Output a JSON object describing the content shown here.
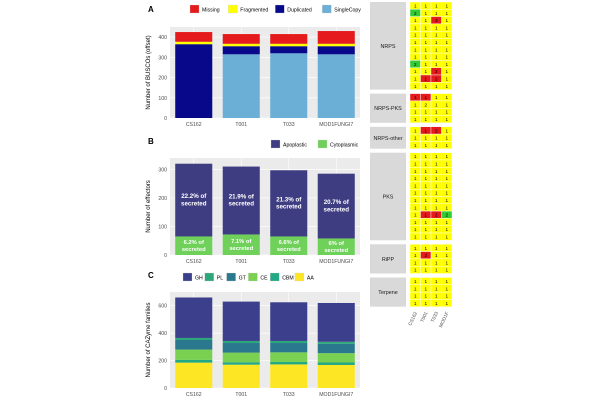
{
  "figure": {
    "panel_letters": [
      "A",
      "B",
      "C",
      "D"
    ]
  },
  "colors": {
    "panel_bg": "#ebebeb",
    "grid": "#ffffff",
    "axis_text": "#4d4d4d",
    "strip_bg": "#d9d9d9",
    "heat_yellow": "#ffff00",
    "heat_red": "#e41a1c",
    "heat_green": "#33cc33"
  },
  "chart_data": [
    {
      "id": "A",
      "type": "bar",
      "stacked": true,
      "ylabel": "Number of BUSCOs (offset)",
      "xlabel": "",
      "categories": [
        "CS162",
        "T001",
        "T033",
        "MOD1FUNGI7"
      ],
      "ylim": [
        0,
        450
      ],
      "yticks": [
        0,
        100,
        200,
        300,
        400
      ],
      "legend_position": "top-right",
      "series": [
        {
          "name": "SingleCopy",
          "color": "#6baed6",
          "values": [
            0,
            315,
            320,
            315
          ]
        },
        {
          "name": "Duplicated",
          "color": "#08088a",
          "values": [
            365,
            40,
            35,
            40
          ]
        },
        {
          "name": "Fragmented",
          "color": "#ffff00",
          "values": [
            12,
            12,
            12,
            12
          ]
        },
        {
          "name": "Missing",
          "color": "#e41a1c",
          "values": [
            48,
            48,
            48,
            63
          ]
        }
      ],
      "legend_order": [
        "Missing",
        "Fragmented",
        "Duplicated",
        "SingleCopy"
      ]
    },
    {
      "id": "B",
      "type": "bar",
      "stacked": true,
      "ylabel": "Number of effectors",
      "xlabel": "",
      "categories": [
        "CS162",
        "T001",
        "T033",
        "MOD1FUNGI7"
      ],
      "ylim": [
        0,
        340
      ],
      "yticks": [
        0,
        100,
        200,
        300
      ],
      "legend_position": "top-right",
      "series": [
        {
          "name": "Cytoplasmic",
          "color": "#6fd05a",
          "values": [
            65,
            72,
            65,
            58
          ]
        },
        {
          "name": "Apoplastic",
          "color": "#3f3d82",
          "values": [
            255,
            238,
            232,
            227
          ]
        }
      ],
      "legend_order": [
        "Apoplastic",
        "Cytoplasmic"
      ],
      "annotations": {
        "Apoplastic": [
          "22.2% of secreted",
          "21.9% of secreted",
          "21.3% of secreted",
          "20.7% of secreted"
        ],
        "Cytoplasmic": [
          "6.2% of secreted",
          "7.1% of secreted",
          "6.6% of secreted",
          "6% of secreted"
        ]
      }
    },
    {
      "id": "C",
      "type": "bar",
      "stacked": true,
      "ylabel": "Number of CAZyme families",
      "xlabel": "",
      "categories": [
        "CS162",
        "T001",
        "T033",
        "MOD1FUNGI7"
      ],
      "ylim": [
        0,
        700
      ],
      "yticks": [
        0,
        200,
        400,
        600
      ],
      "legend_position": "top-right",
      "series": [
        {
          "name": "AA",
          "color": "#fde725",
          "values": [
            185,
            170,
            172,
            168
          ]
        },
        {
          "name": "CBM",
          "color": "#22a884",
          "values": [
            20,
            18,
            18,
            18
          ]
        },
        {
          "name": "CE",
          "color": "#7ad151",
          "values": [
            75,
            70,
            70,
            68
          ]
        },
        {
          "name": "GT",
          "color": "#2a788e",
          "values": [
            70,
            70,
            68,
            68
          ]
        },
        {
          "name": "PL",
          "color": "#2ba77a",
          "values": [
            15,
            15,
            15,
            15
          ]
        },
        {
          "name": "GH",
          "color": "#3b3f8c",
          "values": [
            295,
            287,
            282,
            283
          ]
        }
      ],
      "legend_order": [
        "GH",
        "PL",
        "GT",
        "CE",
        "CBM",
        "AA"
      ]
    },
    {
      "id": "D",
      "type": "heatmap",
      "columns": [
        "CS162",
        "T001",
        "T033",
        "MOD1FUNGI7"
      ],
      "column_labels_display": [
        "CS162",
        "T001",
        "T033",
        "MOD1F"
      ],
      "groups": [
        {
          "name": "NRPS",
          "rows": [
            [
              "1",
              "1",
              "1",
              "1"
            ],
            [
              "2",
              "1",
              "1",
              "1"
            ],
            [
              "1",
              "1",
              "3",
              "1"
            ],
            [
              "1",
              "1",
              "1",
              "1"
            ],
            [
              "1",
              "1",
              "1",
              "1"
            ],
            [
              "1",
              "1",
              "1",
              "1"
            ],
            [
              "1",
              "1",
              "1",
              "1"
            ],
            [
              "1",
              "1",
              "1",
              "1"
            ],
            [
              "2",
              "1",
              "1",
              "1"
            ],
            [
              "1",
              "1",
              "2",
              "1"
            ],
            [
              "1",
              "1",
              "2",
              "1"
            ],
            [
              "1",
              "1",
              "1",
              "1"
            ]
          ]
        },
        {
          "name": "NRPS-PKS",
          "rows": [
            [
              "1",
              "1",
              "1",
              "1"
            ],
            [
              "1",
              "2",
              "1",
              "1"
            ],
            [
              "1",
              "1",
              "1",
              "1"
            ],
            [
              "1",
              "1",
              "1",
              "1"
            ]
          ]
        },
        {
          "name": "NRPS-other",
          "rows": [
            [
              "1",
              "1",
              "2",
              "1"
            ],
            [
              "1",
              "1",
              "1",
              "1"
            ],
            [
              "1",
              "1",
              "1",
              "1"
            ]
          ]
        },
        {
          "name": "PKS",
          "rows": [
            [
              "1",
              "1",
              "1",
              "1"
            ],
            [
              "1",
              "1",
              "1",
              "1"
            ],
            [
              "1",
              "1",
              "1",
              "1"
            ],
            [
              "1",
              "1",
              "1",
              "1"
            ],
            [
              "1",
              "1",
              "1",
              "1"
            ],
            [
              "1",
              "1",
              "1",
              "1"
            ],
            [
              "1",
              "1",
              "1",
              "1"
            ],
            [
              "1",
              "1",
              "1",
              "1"
            ],
            [
              "1",
              "1",
              "2",
              "2"
            ],
            [
              "1",
              "1",
              "1",
              "1"
            ],
            [
              "1",
              "1",
              "1",
              "1"
            ],
            [
              "1",
              "1",
              "1",
              "1"
            ]
          ]
        },
        {
          "name": "RiPP",
          "rows": [
            [
              "1",
              "1",
              "1",
              "1"
            ],
            [
              "1",
              "2",
              "1",
              "1"
            ],
            [
              "1",
              "1",
              "1",
              "1"
            ],
            [
              "1",
              "1",
              "1",
              "1"
            ]
          ]
        },
        {
          "name": "Terpene",
          "rows": [
            [
              "1",
              "1",
              "1",
              "1"
            ],
            [
              "1",
              "1",
              "1",
              "1"
            ],
            [
              "1",
              "1",
              "1",
              "1"
            ],
            [
              "1",
              "1",
              "1",
              "1"
            ]
          ]
        }
      ],
      "cell_colors": [
        {
          "group": "NRPS",
          "row": 1,
          "col": 0,
          "color": "green"
        },
        {
          "group": "NRPS",
          "row": 2,
          "col": 2,
          "color": "red"
        },
        {
          "group": "NRPS",
          "row": 8,
          "col": 0,
          "color": "green"
        },
        {
          "group": "NRPS",
          "row": 9,
          "col": 2,
          "color": "red"
        },
        {
          "group": "NRPS",
          "row": 10,
          "col": 1,
          "color": "red"
        },
        {
          "group": "NRPS",
          "row": 10,
          "col": 2,
          "color": "red"
        },
        {
          "group": "NRPS-PKS",
          "row": 0,
          "col": 0,
          "color": "red"
        },
        {
          "group": "NRPS-PKS",
          "row": 0,
          "col": 1,
          "color": "red"
        },
        {
          "group": "NRPS-other",
          "row": 0,
          "col": 1,
          "color": "red"
        },
        {
          "group": "NRPS-other",
          "row": 0,
          "col": 2,
          "color": "red"
        },
        {
          "group": "PKS",
          "row": 8,
          "col": 1,
          "color": "red"
        },
        {
          "group": "PKS",
          "row": 8,
          "col": 2,
          "color": "red"
        },
        {
          "group": "PKS",
          "row": 8,
          "col": 3,
          "color": "green"
        },
        {
          "group": "RiPP",
          "row": 1,
          "col": 1,
          "color": "red"
        }
      ]
    }
  ]
}
